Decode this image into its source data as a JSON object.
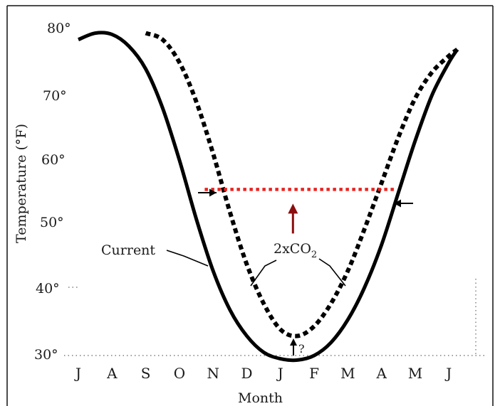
{
  "chart_data": {
    "type": "line",
    "title": "",
    "xlabel": "Month",
    "ylabel": "Temperature (°F)",
    "ylim": [
      30,
      80
    ],
    "yticks": [
      80,
      70,
      60,
      50,
      40,
      30
    ],
    "ytick_labels": [
      "80°",
      "70°",
      "60°",
      "50°",
      "40°",
      "30°"
    ],
    "categories": [
      "J",
      "A",
      "S",
      "O",
      "N",
      "D",
      "J",
      "F",
      "M",
      "A",
      "M",
      "J"
    ],
    "series": [
      {
        "name": "Current",
        "style": "solid",
        "color": "#000000",
        "points": [
          [
            0.0,
            78.5
          ],
          [
            0.5,
            79.5
          ],
          [
            1.0,
            79.3
          ],
          [
            1.5,
            77.5
          ],
          [
            2.0,
            74.0
          ],
          [
            2.5,
            68.0
          ],
          [
            3.0,
            60.0
          ],
          [
            3.5,
            51.0
          ],
          [
            4.0,
            43.0
          ],
          [
            4.5,
            37.0
          ],
          [
            5.0,
            33.0
          ],
          [
            5.5,
            30.5
          ],
          [
            6.0,
            29.5
          ],
          [
            6.5,
            29.3
          ],
          [
            7.0,
            30.0
          ],
          [
            7.5,
            32.0
          ],
          [
            8.0,
            35.5
          ],
          [
            8.5,
            40.5
          ],
          [
            9.0,
            47.0
          ],
          [
            9.5,
            55.0
          ],
          [
            10.0,
            63.0
          ],
          [
            10.5,
            70.0
          ],
          [
            11.0,
            75.0
          ],
          [
            11.25,
            77.0
          ]
        ]
      },
      {
        "name": "2xCO2",
        "style": "dashed",
        "color": "#000000",
        "points": [
          [
            2.0,
            79.5
          ],
          [
            2.5,
            78.5
          ],
          [
            3.0,
            75.0
          ],
          [
            3.5,
            69.0
          ],
          [
            4.0,
            61.0
          ],
          [
            4.5,
            52.0
          ],
          [
            5.0,
            44.0
          ],
          [
            5.5,
            38.0
          ],
          [
            6.0,
            34.0
          ],
          [
            6.5,
            33.0
          ],
          [
            7.0,
            34.5
          ],
          [
            7.5,
            38.0
          ],
          [
            8.0,
            43.0
          ],
          [
            8.5,
            49.5
          ],
          [
            9.0,
            56.5
          ],
          [
            9.5,
            63.5
          ],
          [
            10.0,
            69.5
          ],
          [
            10.5,
            73.5
          ],
          [
            11.0,
            76.0
          ],
          [
            11.25,
            77.0
          ]
        ]
      }
    ],
    "annotations": {
      "current_label": "Current",
      "co2_label_main": "2xCO",
      "co2_label_sub": "2",
      "question_mark": "?"
    },
    "highlight": {
      "description_color": "#e8231f",
      "arrow_color": "#8b0d0d",
      "threshold_temp": 55.5,
      "x_start": 3.75,
      "x_end": 9.45
    }
  }
}
